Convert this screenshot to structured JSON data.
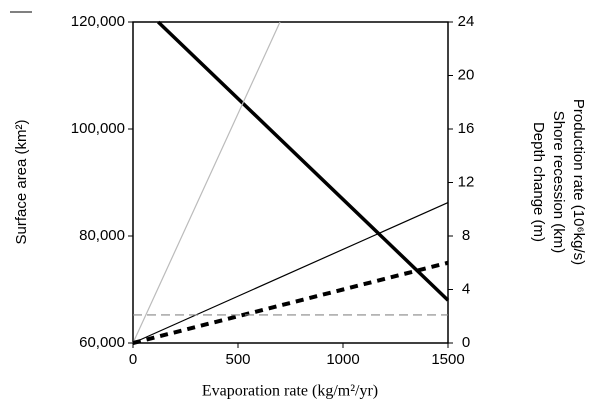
{
  "chart_data": {
    "type": "line",
    "xlabel": "Evaporation rate (kg/m²/yr)",
    "ylabel": "Surface area (km²)",
    "y2labels": [
      "Production rate (10⁶kg/s)",
      "Shore recession (km)",
      "Depth change (m)"
    ],
    "xlim": [
      0,
      1500
    ],
    "xticks": [
      0,
      500,
      1000,
      1500
    ],
    "ylim": [
      60000,
      120000
    ],
    "yticks": [
      {
        "value": 60000,
        "label": "60,000"
      },
      {
        "value": 80000,
        "label": "80,000"
      },
      {
        "value": 100000,
        "label": "100,000"
      },
      {
        "value": 120000,
        "label": "120,000"
      }
    ],
    "y2lim": [
      0,
      24
    ],
    "y2ticks": [
      0,
      4,
      8,
      12,
      16,
      20,
      24
    ],
    "series": [
      {
        "color": "#000000",
        "style": "thick",
        "x": [
          120,
          1500
        ],
        "values": [
          120000,
          68000
        ]
      },
      {
        "color": "#bbbbbb",
        "style": "thin",
        "axis": "y2",
        "x": [
          0,
          700
        ],
        "values": [
          0,
          24
        ]
      },
      {
        "color": "#000000",
        "style": "thin",
        "axis": "y2",
        "x": [
          0,
          1500
        ],
        "values": [
          0,
          10.5
        ]
      },
      {
        "color": "#000000",
        "style": "dashed-thick",
        "axis": "y2",
        "x": [
          0,
          500,
          1000,
          1500
        ],
        "values": [
          0,
          2,
          4,
          6
        ]
      },
      {
        "color": "#888888",
        "style": "dashed",
        "axis": "y2",
        "x": [
          0,
          1500
        ],
        "values": [
          2.1,
          2.1
        ]
      }
    ]
  }
}
